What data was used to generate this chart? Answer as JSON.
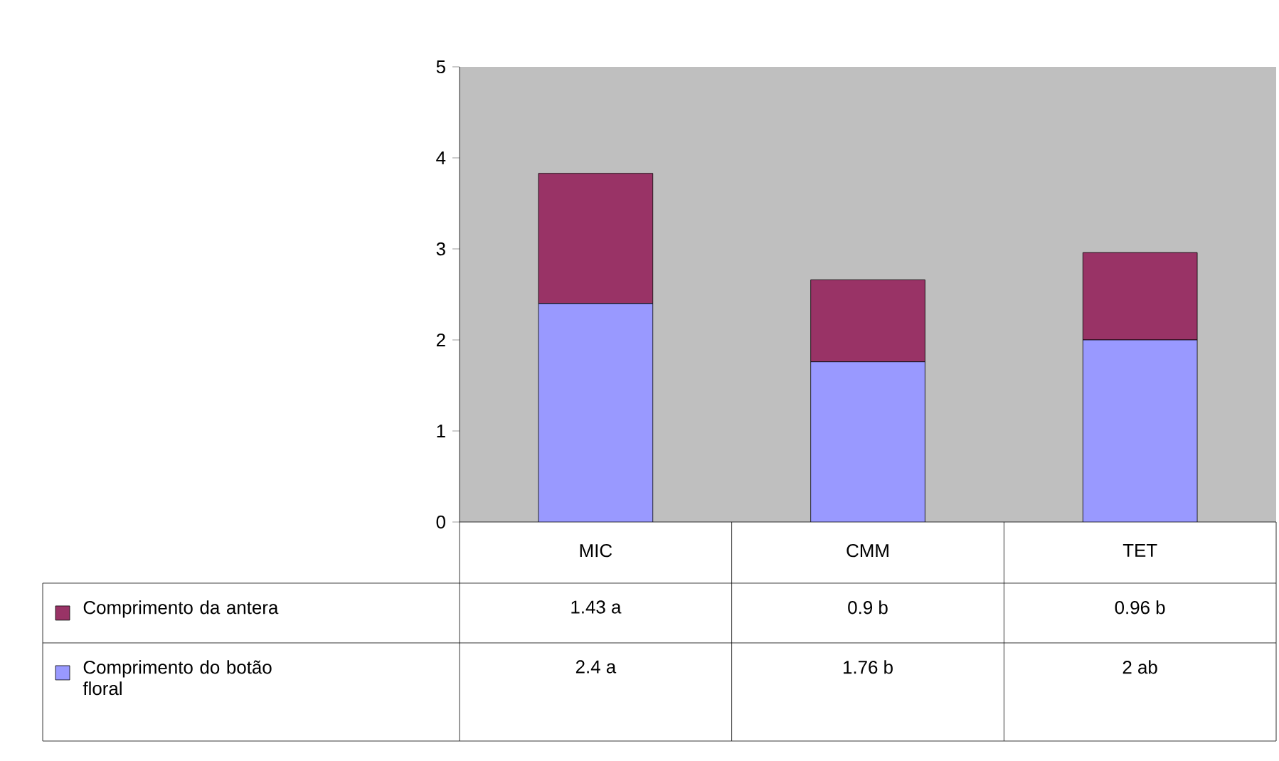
{
  "chart_data": {
    "type": "bar",
    "stacked": true,
    "categories": [
      "MIC",
      "CMM",
      "TET"
    ],
    "series": [
      {
        "name": "Comprimento do botão floral",
        "color": "#9999ff",
        "values": [
          2.4,
          1.76,
          2
        ],
        "value_labels": [
          "2.4 a",
          "1.76 b",
          "2 ab"
        ]
      },
      {
        "name": "Comprimento da antera",
        "color": "#993366",
        "values": [
          1.43,
          0.9,
          0.96
        ],
        "value_labels": [
          "1.43 a",
          "0.9 b",
          "0.96 b"
        ]
      }
    ],
    "ylim": [
      0,
      5
    ],
    "yticks": [
      0,
      1,
      2,
      3,
      4,
      5
    ],
    "legend": "bottom",
    "grid": false
  }
}
